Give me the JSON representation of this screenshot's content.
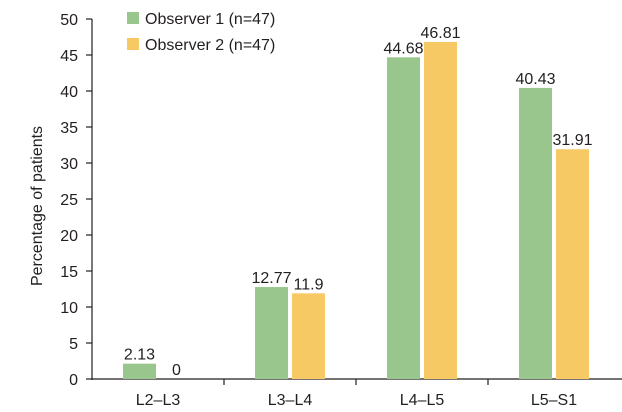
{
  "chart_data": {
    "type": "bar",
    "categories": [
      "L2–L3",
      "L3–L4",
      "L4–L5",
      "L5–S1"
    ],
    "series": [
      {
        "name": "Observer 1 (n=47)",
        "values": [
          2.13,
          12.77,
          44.68,
          40.43
        ],
        "labels": [
          "2.13",
          "12.77",
          "44.68",
          "40.43"
        ],
        "color": "#99c68c"
      },
      {
        "name": "Observer 2 (n=47)",
        "values": [
          0,
          11.9,
          46.81,
          31.91
        ],
        "labels": [
          "0",
          "11.9",
          "46.81",
          "31.91"
        ],
        "color": "#f7c964"
      }
    ],
    "xlabel": "",
    "ylabel": "Percentage of patients",
    "ylim": [
      0,
      50
    ],
    "yticks": [
      0,
      5,
      10,
      15,
      20,
      25,
      30,
      35,
      40,
      45,
      50
    ],
    "grid": false,
    "legend_position": "top-left"
  }
}
